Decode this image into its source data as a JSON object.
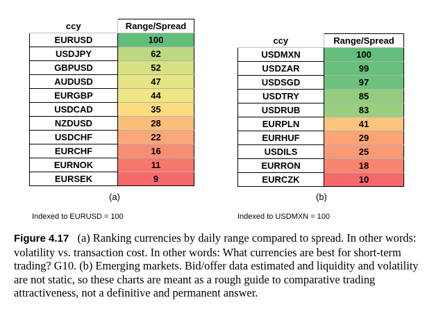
{
  "table_a": {
    "header_ccy": "ccy",
    "header_value": "Range/Spread",
    "rows": [
      {
        "ccy": "EURUSD",
        "value": "100",
        "color": "#63be7b"
      },
      {
        "ccy": "USDJPY",
        "value": "62",
        "color": "#bdd881"
      },
      {
        "ccy": "GBPUSD",
        "value": "52",
        "color": "#d8e082"
      },
      {
        "ccy": "AUDUSD",
        "value": "47",
        "color": "#e6e483"
      },
      {
        "ccy": "EURGBP",
        "value": "44",
        "color": "#efe784"
      },
      {
        "ccy": "USDCAD",
        "value": "35",
        "color": "#fedd81"
      },
      {
        "ccy": "NZDUSD",
        "value": "28",
        "color": "#fcbf7b"
      },
      {
        "ccy": "USDCHF",
        "value": "22",
        "color": "#fba777"
      },
      {
        "ccy": "EURCHF",
        "value": "16",
        "color": "#f98e73"
      },
      {
        "ccy": "EURNOK",
        "value": "11",
        "color": "#f8776d"
      },
      {
        "ccy": "EURSEK",
        "value": "9",
        "color": "#f8696b"
      }
    ],
    "label": "(a)",
    "note": "Indexed to EURUSD = 100"
  },
  "table_b": {
    "header_ccy": "ccy",
    "header_value": "Range/Spread",
    "rows": [
      {
        "ccy": "USDMXN",
        "value": "100",
        "color": "#63be7b"
      },
      {
        "ccy": "USDZAR",
        "value": "99",
        "color": "#66bf7b"
      },
      {
        "ccy": "USDSGD",
        "value": "97",
        "color": "#6cc17c"
      },
      {
        "ccy": "USDTRY",
        "value": "85",
        "color": "#93cc7e"
      },
      {
        "ccy": "USDRUB",
        "value": "83",
        "color": "#9acf7f"
      },
      {
        "ccy": "EURPLN",
        "value": "41",
        "color": "#fdc47c"
      },
      {
        "ccy": "EURHUF",
        "value": "29",
        "color": "#fba577"
      },
      {
        "ccy": "USDILS",
        "value": "25",
        "color": "#fa9a75"
      },
      {
        "ccy": "EURRON",
        "value": "18",
        "color": "#f9846f"
      },
      {
        "ccy": "EURCZK",
        "value": "10",
        "color": "#f8696b"
      }
    ],
    "label": "(b)",
    "note": "Indexed to USDMXN = 100"
  },
  "caption": {
    "figure_label": "Figure 4.17",
    "text": "(a) Ranking currencies by daily range compared to spread. In other words: volatility vs. transaction cost. In other words: What currencies are best for short-term trading? G10. (b) Emerging markets. Bid/offer data estimated and liquidity and volatility are not static, so these charts are meant as a rough guide to comparative trading attractiveness, not a definitive and permanent answer."
  }
}
